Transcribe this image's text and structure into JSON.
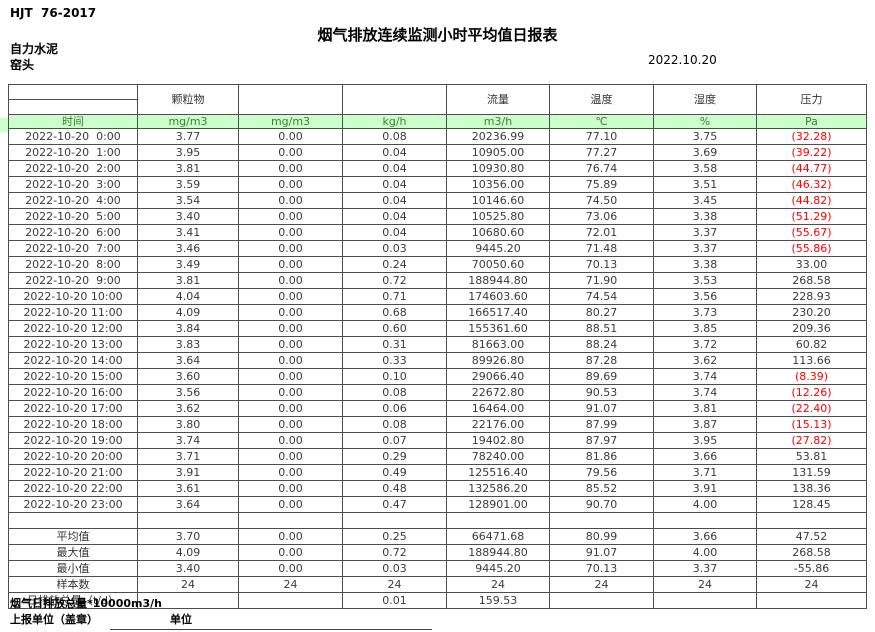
{
  "page": {
    "doc_code": "HJT  76-2017",
    "title": "烟气排放连续监测小时平均值日报表",
    "company": "自力水泥",
    "location": "窑头",
    "date": "2022.10.20"
  },
  "table": {
    "group_headers": [
      "",
      "颗粒物",
      "",
      "",
      "流量",
      "温度",
      "湿度",
      "压力"
    ],
    "unit_row": [
      "时间",
      "mg/m3",
      "mg/m3",
      "kg/h",
      "m3/h",
      "℃",
      "%",
      "Pa"
    ],
    "rows": [
      {
        "time": "2022-10-20  0:00",
        "values": [
          "3.77",
          "0.00",
          "0.08",
          "20236.99",
          "77.10",
          "3.75",
          "(32.28)"
        ]
      },
      {
        "time": "2022-10-20  1:00",
        "values": [
          "3.95",
          "0.00",
          "0.04",
          "10905.00",
          "77.27",
          "3.69",
          "(39.22)"
        ]
      },
      {
        "time": "2022-10-20  2:00",
        "values": [
          "3.81",
          "0.00",
          "0.04",
          "10930.80",
          "76.74",
          "3.58",
          "(44.77)"
        ]
      },
      {
        "time": "2022-10-20  3:00",
        "values": [
          "3.59",
          "0.00",
          "0.04",
          "10356.00",
          "75.89",
          "3.51",
          "(46.32)"
        ]
      },
      {
        "time": "2022-10-20  4:00",
        "values": [
          "3.54",
          "0.00",
          "0.04",
          "10146.60",
          "74.50",
          "3.45",
          "(44.82)"
        ]
      },
      {
        "time": "2022-10-20  5:00",
        "values": [
          "3.40",
          "0.00",
          "0.04",
          "10525.80",
          "73.06",
          "3.38",
          "(51.29)"
        ]
      },
      {
        "time": "2022-10-20  6:00",
        "values": [
          "3.41",
          "0.00",
          "0.04",
          "10680.60",
          "72.01",
          "3.37",
          "(55.67)"
        ]
      },
      {
        "time": "2022-10-20  7:00",
        "values": [
          "3.46",
          "0.00",
          "0.03",
          "9445.20",
          "71.48",
          "3.37",
          "(55.86)"
        ]
      },
      {
        "time": "2022-10-20  8:00",
        "values": [
          "3.49",
          "0.00",
          "0.24",
          "70050.60",
          "70.13",
          "3.38",
          "33.00"
        ]
      },
      {
        "time": "2022-10-20  9:00",
        "values": [
          "3.81",
          "0.00",
          "0.72",
          "188944.80",
          "71.90",
          "3.53",
          "268.58"
        ]
      },
      {
        "time": "2022-10-20 10:00",
        "values": [
          "4.04",
          "0.00",
          "0.71",
          "174603.60",
          "74.54",
          "3.56",
          "228.93"
        ]
      },
      {
        "time": "2022-10-20 11:00",
        "values": [
          "4.09",
          "0.00",
          "0.68",
          "166517.40",
          "80.27",
          "3.73",
          "230.20"
        ]
      },
      {
        "time": "2022-10-20 12:00",
        "values": [
          "3.84",
          "0.00",
          "0.60",
          "155361.60",
          "88.51",
          "3.85",
          "209.36"
        ]
      },
      {
        "time": "2022-10-20 13:00",
        "values": [
          "3.83",
          "0.00",
          "0.31",
          "81663.00",
          "88.24",
          "3.72",
          "60.82"
        ]
      },
      {
        "time": "2022-10-20 14:00",
        "values": [
          "3.64",
          "0.00",
          "0.33",
          "89926.80",
          "87.28",
          "3.62",
          "113.66"
        ]
      },
      {
        "time": "2022-10-20 15:00",
        "values": [
          "3.60",
          "0.00",
          "0.10",
          "29066.40",
          "89.69",
          "3.74",
          "(8.39)"
        ]
      },
      {
        "time": "2022-10-20 16:00",
        "values": [
          "3.56",
          "0.00",
          "0.08",
          "22672.80",
          "90.53",
          "3.74",
          "(12.26)"
        ]
      },
      {
        "time": "2022-10-20 17:00",
        "values": [
          "3.62",
          "0.00",
          "0.06",
          "16464.00",
          "91.07",
          "3.81",
          "(22.40)"
        ]
      },
      {
        "time": "2022-10-20 18:00",
        "values": [
          "3.80",
          "0.00",
          "0.08",
          "22176.00",
          "87.99",
          "3.87",
          "(15.13)"
        ]
      },
      {
        "time": "2022-10-20 19:00",
        "values": [
          "3.74",
          "0.00",
          "0.07",
          "19402.80",
          "87.97",
          "3.95",
          "(27.82)"
        ]
      },
      {
        "time": "2022-10-20 20:00",
        "values": [
          "3.71",
          "0.00",
          "0.29",
          "78240.00",
          "81.86",
          "3.66",
          "53.81"
        ]
      },
      {
        "time": "2022-10-20 21:00",
        "values": [
          "3.91",
          "0.00",
          "0.49",
          "125516.40",
          "79.56",
          "3.71",
          "131.59"
        ]
      },
      {
        "time": "2022-10-20 22:00",
        "values": [
          "3.61",
          "0.00",
          "0.48",
          "132586.20",
          "85.52",
          "3.91",
          "138.36"
        ]
      },
      {
        "time": "2022-10-20 23:00",
        "values": [
          "3.64",
          "0.00",
          "0.47",
          "128901.00",
          "90.70",
          "4.00",
          "128.45"
        ]
      }
    ],
    "summary": [
      {
        "label": "平均值",
        "values": [
          "3.70",
          "0.00",
          "0.25",
          "66471.68",
          "80.99",
          "3.66",
          "47.52"
        ]
      },
      {
        "label": "最大值",
        "values": [
          "4.09",
          "0.00",
          "0.72",
          "188944.80",
          "91.07",
          "4.00",
          "268.58"
        ]
      },
      {
        "label": "最小值",
        "values": [
          "3.40",
          "0.00",
          "0.03",
          "9445.20",
          "70.13",
          "3.37",
          "-55.86"
        ]
      },
      {
        "label": "样本数",
        "values": [
          "24",
          "24",
          "24",
          "24",
          "24",
          "24",
          "24"
        ]
      },
      {
        "label": "日排放总量（t/d）",
        "values": [
          "",
          "",
          "0.01",
          "159.53",
          "",
          "",
          ""
        ]
      }
    ]
  },
  "footer": {
    "note1": "烟气日排放总量*10000m3/h",
    "note2": "上报单位（盖章）",
    "note3": "单位"
  },
  "colors": {
    "header_fill": "#ccffcc",
    "negative_value": "#ff0000"
  }
}
